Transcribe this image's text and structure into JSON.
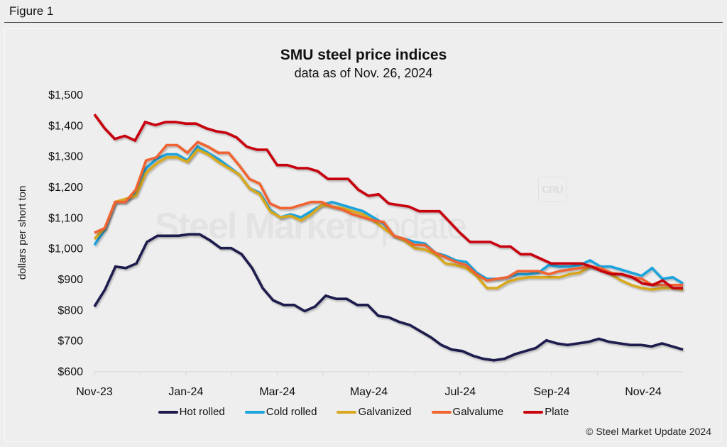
{
  "figure_label": "Figure 1",
  "watermark": {
    "bold": "Steel Market",
    "light": "Update",
    "logo": "CRU"
  },
  "copyright": "© Steel Market Update 2024",
  "chart_data": {
    "type": "line",
    "title": "SMU steel price indices",
    "subtitle": "data as of Nov. 26, 2024",
    "xlabel": "",
    "ylabel": "dollars per short ton",
    "ylim": [
      600,
      1500
    ],
    "yticks": [
      600,
      700,
      800,
      900,
      1000,
      1100,
      1200,
      1300,
      1400,
      1500
    ],
    "ytick_labels": [
      "$600",
      "$700",
      "$800",
      "$900",
      "$1,000",
      "$1,100",
      "$1,200",
      "$1,300",
      "$1,400",
      "$1,500"
    ],
    "xtick_labels": [
      "Nov-23",
      "Jan-24",
      "Mar-24",
      "May-24",
      "Jul-24",
      "Sep-24",
      "Nov-24"
    ],
    "xtick_months": [
      0,
      2,
      4,
      6,
      8,
      10,
      12
    ],
    "x_range_months": [
      0,
      12.87
    ],
    "point_interval": "bi-weekly",
    "grid": false,
    "legend_position": "bottom",
    "series": [
      {
        "name": "Hot rolled",
        "color": "#1f1a4d",
        "values": [
          810,
          865,
          940,
          935,
          950,
          1020,
          1040,
          1040,
          1040,
          1045,
          1045,
          1025,
          1000,
          1000,
          980,
          935,
          870,
          830,
          815,
          815,
          795,
          810,
          845,
          835,
          835,
          815,
          815,
          780,
          775,
          760,
          750,
          730,
          710,
          685,
          670,
          665,
          650,
          640,
          635,
          640,
          655,
          665,
          675,
          700,
          690,
          685,
          690,
          695,
          705,
          695,
          690,
          685,
          685,
          680,
          690,
          680,
          670
        ]
      },
      {
        "name": "Cold rolled",
        "color": "#1aa3dc",
        "values": [
          1010,
          1060,
          1150,
          1150,
          1180,
          1260,
          1290,
          1305,
          1305,
          1285,
          1330,
          1310,
          1290,
          1265,
          1240,
          1195,
          1180,
          1125,
          1100,
          1110,
          1100,
          1120,
          1140,
          1150,
          1140,
          1130,
          1120,
          1100,
          1080,
          1040,
          1030,
          1020,
          1015,
          985,
          975,
          960,
          955,
          920,
          900,
          900,
          905,
          915,
          915,
          920,
          945,
          940,
          940,
          945,
          960,
          940,
          940,
          930,
          920,
          910,
          935,
          900,
          905,
          885
        ]
      },
      {
        "name": "Galvanized",
        "color": "#d9a81f",
        "values": [
          1030,
          1065,
          1150,
          1160,
          1170,
          1245,
          1275,
          1295,
          1295,
          1280,
          1320,
          1305,
          1280,
          1260,
          1240,
          1195,
          1175,
          1120,
          1100,
          1105,
          1090,
          1110,
          1140,
          1135,
          1130,
          1120,
          1110,
          1090,
          1065,
          1040,
          1025,
          1000,
          995,
          980,
          950,
          945,
          935,
          910,
          870,
          870,
          890,
          900,
          905,
          905,
          905,
          905,
          915,
          920,
          940,
          930,
          915,
          895,
          880,
          870,
          865,
          870,
          870,
          865
        ]
      },
      {
        "name": "Galvalume",
        "color": "#f06430",
        "values": [
          1050,
          1065,
          1150,
          1150,
          1190,
          1285,
          1295,
          1335,
          1335,
          1310,
          1345,
          1330,
          1310,
          1310,
          1270,
          1225,
          1210,
          1145,
          1130,
          1130,
          1140,
          1150,
          1150,
          1135,
          1125,
          1110,
          1100,
          1090,
          1085,
          1040,
          1030,
          1010,
          1010,
          985,
          970,
          955,
          945,
          915,
          895,
          900,
          905,
          925,
          925,
          925,
          915,
          925,
          930,
          935,
          940,
          935,
          920,
          915,
          905,
          900,
          880,
          880,
          880,
          880
        ]
      },
      {
        "name": "Plate",
        "color": "#c8060e",
        "values": [
          1435,
          1390,
          1355,
          1365,
          1350,
          1410,
          1400,
          1410,
          1410,
          1405,
          1405,
          1390,
          1380,
          1375,
          1360,
          1330,
          1320,
          1320,
          1270,
          1270,
          1260,
          1260,
          1250,
          1225,
          1225,
          1225,
          1190,
          1170,
          1175,
          1145,
          1140,
          1135,
          1120,
          1120,
          1120,
          1085,
          1050,
          1020,
          1020,
          1020,
          1005,
          1005,
          980,
          980,
          965,
          950,
          950,
          950,
          950,
          940,
          925,
          915,
          915,
          905,
          885,
          880,
          895,
          870,
          870
        ]
      }
    ]
  }
}
